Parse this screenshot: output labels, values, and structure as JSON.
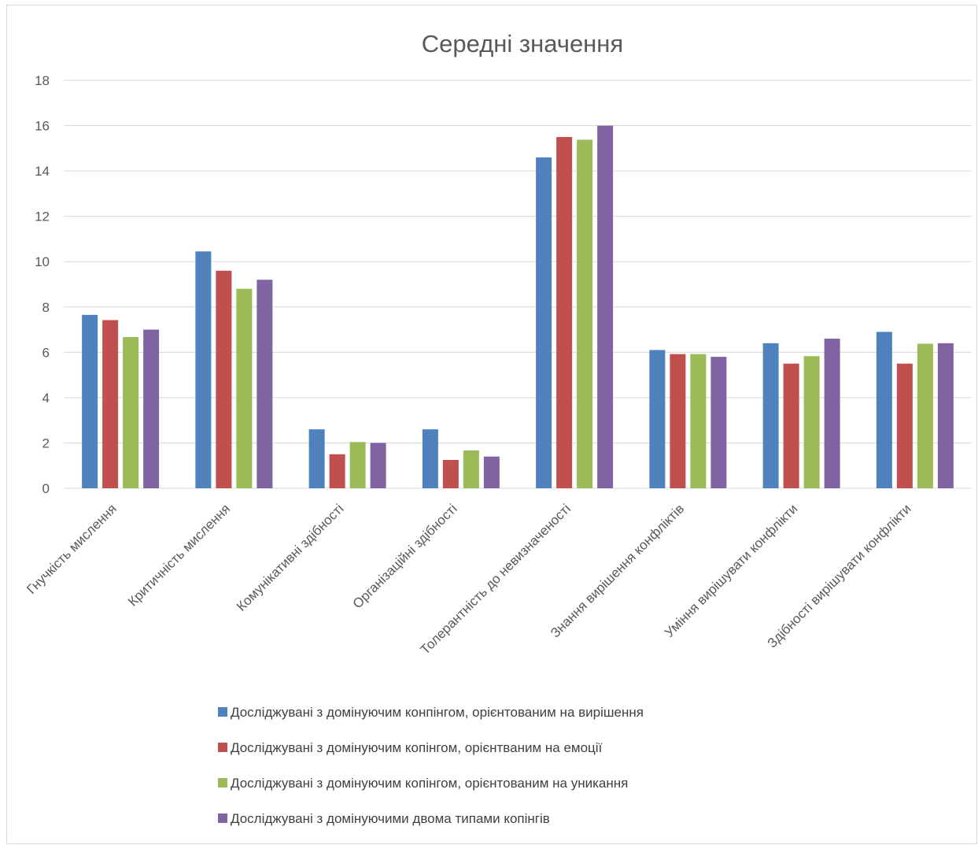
{
  "chart_data": {
    "type": "bar",
    "title": "Середні значення",
    "xlabel": "",
    "ylabel": "",
    "ylim": [
      0,
      18
    ],
    "yticks": [
      0,
      2,
      4,
      6,
      8,
      10,
      12,
      14,
      16,
      18
    ],
    "grid": true,
    "legend_position": "bottom",
    "categories": [
      "Гнучкість мислення",
      "Критичність мислення",
      "Комунікативні здібності",
      "Організаційні здібності",
      "Толерантність до невизначеності",
      "Знання вирішення конфліктів",
      "Уміння вирішувати конфлікти",
      "Здібності вирішувати конфлікти"
    ],
    "series": [
      {
        "name": "Досліджувані з домінуючим конпінгом, орієнтованим на вирішення",
        "color": "#4f81bd",
        "values": [
          7.65,
          10.45,
          2.6,
          2.6,
          14.6,
          6.1,
          6.4,
          6.9
        ]
      },
      {
        "name": "Досліджувані з домінуючим копінгом, орієнтваним на емоції",
        "color": "#c0504d",
        "values": [
          7.42,
          9.6,
          1.5,
          1.25,
          15.5,
          5.92,
          5.5,
          5.5
        ]
      },
      {
        "name": "Досліджувані з домінуючим копінгом, орієнтованим на уникання",
        "color": "#9bbb59",
        "values": [
          6.67,
          8.8,
          2.04,
          1.67,
          15.38,
          5.92,
          5.83,
          6.38
        ]
      },
      {
        "name": "Досліджувані з домінуючими двома типами копінгів",
        "color": "#8064a2",
        "values": [
          7.0,
          9.2,
          2.0,
          1.4,
          16.0,
          5.8,
          6.6,
          6.4
        ]
      }
    ]
  }
}
